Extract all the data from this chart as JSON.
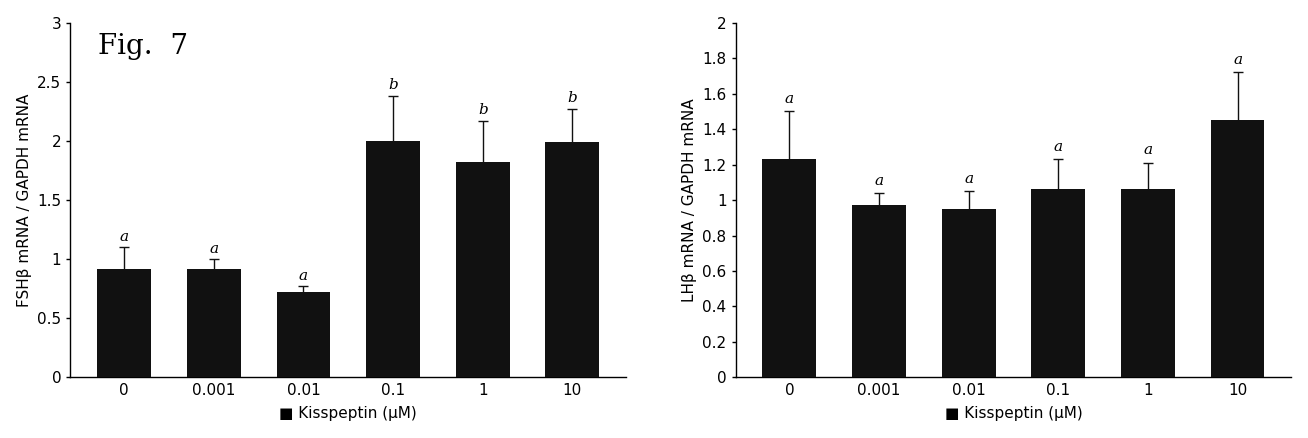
{
  "fsh": {
    "categories": [
      "0",
      "0.001",
      "0.01",
      "0.1",
      "1",
      "10"
    ],
    "values": [
      0.92,
      0.92,
      0.72,
      2.0,
      1.82,
      1.99
    ],
    "errors": [
      0.18,
      0.08,
      0.05,
      0.38,
      0.35,
      0.28
    ],
    "letters": [
      "a",
      "a",
      "a",
      "b",
      "b",
      "b"
    ],
    "ylabel": "FSHβ mRNA / GAPDH mRNA",
    "ylim": [
      0,
      3.0
    ],
    "yticks": [
      0,
      0.5,
      1.0,
      1.5,
      2.0,
      2.5,
      3.0
    ],
    "yticklabels": [
      "0",
      "0.5",
      "1",
      "1.5",
      "2",
      "2.5",
      "3"
    ]
  },
  "lh": {
    "categories": [
      "0",
      "0.001",
      "0.01",
      "0.1",
      "1",
      "10"
    ],
    "values": [
      1.23,
      0.97,
      0.95,
      1.06,
      1.06,
      1.45
    ],
    "errors": [
      0.27,
      0.07,
      0.1,
      0.17,
      0.15,
      0.27
    ],
    "letters": [
      "a",
      "a",
      "a",
      "a",
      "a",
      "a"
    ],
    "ylabel": "LHβ mRNA / GAPDH mRNA",
    "ylim": [
      0,
      2.0
    ],
    "yticks": [
      0,
      0.2,
      0.4,
      0.6,
      0.8,
      1.0,
      1.2,
      1.4,
      1.6,
      1.8,
      2.0
    ],
    "yticklabels": [
      "0",
      "0.2",
      "0.4",
      "0.6",
      "0.8",
      "1",
      "1.2",
      "1.4",
      "1.6",
      "1.8",
      "2"
    ]
  },
  "xlabel": "Kisspeptin (μM)",
  "bar_color": "#111111",
  "error_color": "#111111",
  "fig7_label": "Fig.  7",
  "fig7_fontsize": 20,
  "bar_width": 0.6,
  "letter_fontsize": 11,
  "xlabel_fontsize": 11,
  "ylabel_fontsize": 11,
  "tick_fontsize": 11
}
